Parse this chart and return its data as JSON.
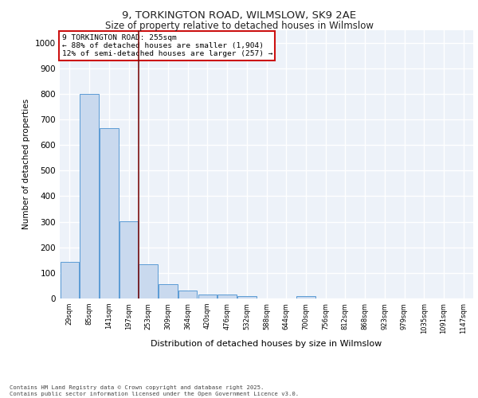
{
  "title_line1": "9, TORKINGTON ROAD, WILMSLOW, SK9 2AE",
  "title_line2": "Size of property relative to detached houses in Wilmslow",
  "xlabel": "Distribution of detached houses by size in Wilmslow",
  "ylabel": "Number of detached properties",
  "categories": [
    "29sqm",
    "85sqm",
    "141sqm",
    "197sqm",
    "253sqm",
    "309sqm",
    "364sqm",
    "420sqm",
    "476sqm",
    "532sqm",
    "588sqm",
    "644sqm",
    "700sqm",
    "756sqm",
    "812sqm",
    "868sqm",
    "923sqm",
    "979sqm",
    "1035sqm",
    "1091sqm",
    "1147sqm"
  ],
  "values": [
    143,
    800,
    665,
    303,
    135,
    57,
    30,
    17,
    17,
    10,
    0,
    0,
    10,
    0,
    0,
    0,
    0,
    0,
    0,
    0,
    0
  ],
  "bar_color": "#c9d9ee",
  "bar_edge_color": "#5b9bd5",
  "vline_x_index": 3.5,
  "vline_color": "#7b1010",
  "annotation_box_text": "9 TORKINGTON ROAD: 255sqm\n← 88% of detached houses are smaller (1,904)\n12% of semi-detached houses are larger (257) →",
  "ylim": [
    0,
    1050
  ],
  "yticks": [
    0,
    100,
    200,
    300,
    400,
    500,
    600,
    700,
    800,
    900,
    1000
  ],
  "bg_color": "#edf2f9",
  "grid_color": "#ffffff",
  "footer_line1": "Contains HM Land Registry data © Crown copyright and database right 2025.",
  "footer_line2": "Contains public sector information licensed under the Open Government Licence v3.0."
}
